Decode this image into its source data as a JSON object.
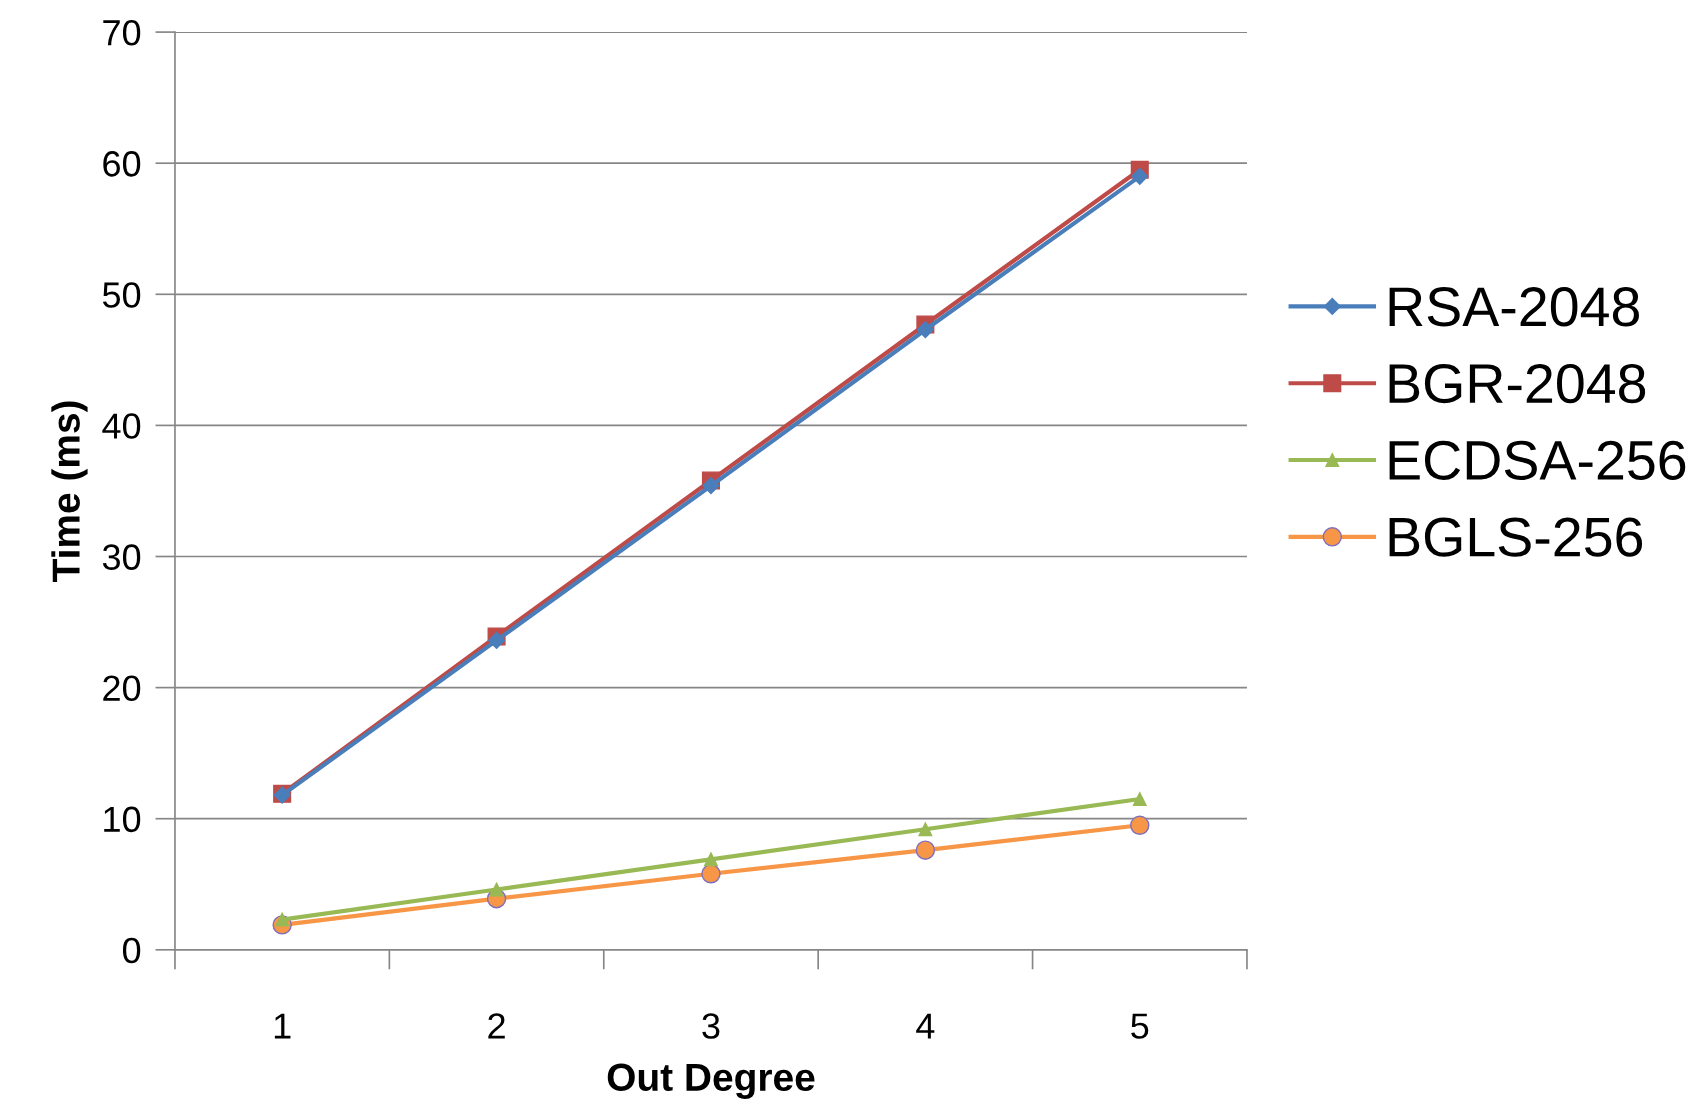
{
  "chart_data": {
    "type": "line",
    "xlabel": "Out Degree",
    "ylabel": "Time (ms)",
    "categories": [
      "1",
      "2",
      "3",
      "4",
      "5"
    ],
    "series": [
      {
        "name": "RSA-2048",
        "color": "#4a7ebb",
        "marker": "diamond",
        "values": [
          11.8,
          23.6,
          35.4,
          47.3,
          59.0
        ]
      },
      {
        "name": "BGR-2048",
        "color": "#be4b48",
        "marker": "square",
        "values": [
          11.9,
          23.9,
          35.8,
          47.7,
          59.5
        ]
      },
      {
        "name": "ECDSA-256",
        "color": "#98b954",
        "marker": "triangle",
        "values": [
          2.3,
          4.6,
          6.9,
          9.2,
          11.5
        ]
      },
      {
        "name": "BGLS-256",
        "color": "#f79646",
        "marker": "circle",
        "values": [
          1.9,
          3.9,
          5.8,
          7.6,
          9.5
        ]
      }
    ],
    "ylim": [
      0,
      70
    ],
    "yticks": [
      0,
      10,
      20,
      30,
      40,
      50,
      60,
      70
    ],
    "grid": "y",
    "legend": "right",
    "line_style": "solid"
  }
}
